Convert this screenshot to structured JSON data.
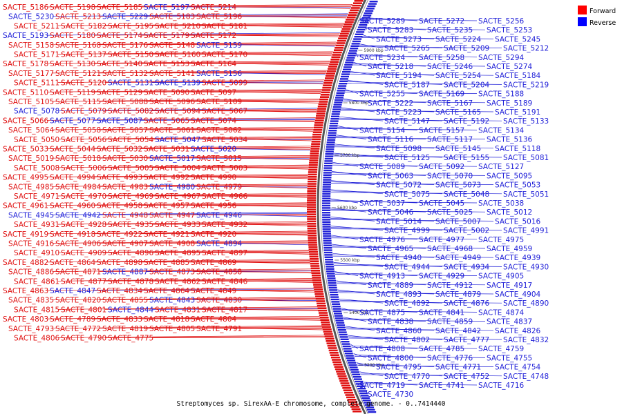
{
  "caption": "Streptomyces sp. SirexAA-E chromosome, complete genome. - 0..7414440",
  "legend": [
    {
      "label": "Forward",
      "color": "#ff0000"
    },
    {
      "label": "Reverse",
      "color": "#0000ff"
    }
  ],
  "colors": {
    "forward": "#e01010",
    "reverse": "#2020d8",
    "backbone": "#555555"
  },
  "ticks": [
    "5900 kbp",
    "5800 kbp",
    "5700 kbp",
    "5600 kbp",
    "5500 kbp",
    "5400 kbp",
    "5300 kbp"
  ],
  "left_labels": [
    [
      "SACTE_5186",
      "f"
    ],
    [
      "SACTE_5198",
      "f"
    ],
    [
      "SACTE_5185",
      "f"
    ],
    [
      "SACTE_5197",
      "r"
    ],
    [
      "SACTE_5214",
      "f"
    ],
    [
      "SACTE_5230",
      "r"
    ],
    [
      "SACTE_5213",
      "f"
    ],
    [
      "SACTE_5229",
      "r"
    ],
    [
      "SACTE_5183",
      "f"
    ],
    [
      "SACTE_5196",
      "f"
    ],
    [
      "SACTE_5211",
      "f"
    ],
    [
      "SACTE_5182",
      "f"
    ],
    [
      "SACTE_5195",
      "f"
    ],
    [
      "SACTE_5210",
      "f"
    ],
    [
      "SACTE_5181",
      "f"
    ],
    [
      "SACTE_5193",
      "r"
    ],
    [
      "SACTE_5180",
      "f"
    ],
    [
      "SACTE_5174",
      "f"
    ],
    [
      "SACTE_5179",
      "f"
    ],
    [
      "SACTE_5172",
      "f"
    ],
    [
      "SACTE_5158",
      "f"
    ],
    [
      "SACTE_5168",
      "f"
    ],
    [
      "SACTE_5176",
      "f"
    ],
    [
      "SACTE_5148",
      "f"
    ],
    [
      "SACTE_5159",
      "r"
    ],
    [
      "SACTE_5171",
      "f"
    ],
    [
      "SACTE_5137",
      "f"
    ],
    [
      "SACTE_5150",
      "f"
    ],
    [
      "SACTE_5160",
      "f"
    ],
    [
      "SACTE_5170",
      "f"
    ],
    [
      "SACTE_5178",
      "f"
    ],
    [
      "SACTE_5130",
      "f"
    ],
    [
      "SACTE_5140",
      "f"
    ],
    [
      "SACTE_5153",
      "f"
    ],
    [
      "SACTE_5164",
      "f"
    ],
    [
      "SACTE_5177",
      "f"
    ],
    [
      "SACTE_5121",
      "f"
    ],
    [
      "SACTE_5132",
      "f"
    ],
    [
      "SACTE_5141",
      "f"
    ],
    [
      "SACTE_5156",
      "r"
    ],
    [
      "SACTE_5111",
      "f"
    ],
    [
      "SACTE_5120",
      "f"
    ],
    [
      "SACTE_5131",
      "r"
    ],
    [
      "SACTE_5139",
      "r"
    ],
    [
      "SACTE_5099",
      "f"
    ],
    [
      "SACTE_5110",
      "f"
    ],
    [
      "SACTE_5119",
      "f"
    ],
    [
      "SACTE_5129",
      "f"
    ],
    [
      "SACTE_5090",
      "f"
    ],
    [
      "SACTE_5097",
      "f"
    ],
    [
      "SACTE_5105",
      "f"
    ],
    [
      "SACTE_5115",
      "f"
    ],
    [
      "SACTE_5088",
      "f"
    ],
    [
      "SACTE_5096",
      "f"
    ],
    [
      "SACTE_5109",
      "f"
    ],
    [
      "SACTE_5078",
      "r"
    ],
    [
      "SACTE_5079",
      "f"
    ],
    [
      "SACTE_5082",
      "f"
    ],
    [
      "SACTE_5094",
      "f"
    ],
    [
      "SACTE_5067",
      "f"
    ],
    [
      "SACTE_5066",
      "f"
    ],
    [
      "SACTE_5077",
      "r"
    ],
    [
      "SACTE_5087",
      "r"
    ],
    [
      "SACTE_5065",
      "f"
    ],
    [
      "SACTE_5074",
      "f"
    ],
    [
      "SACTE_5064",
      "f"
    ],
    [
      "SACTE_5058",
      "f"
    ],
    [
      "SACTE_5057",
      "f"
    ],
    [
      "SACTE_5061",
      "f"
    ],
    [
      "SACTE_5062",
      "f"
    ],
    [
      "SACTE_5050",
      "f"
    ],
    [
      "SACTE_5056",
      "f"
    ],
    [
      "SACTE_5054",
      "f"
    ],
    [
      "SACTE_5047",
      "r"
    ],
    [
      "SACTE_5034",
      "f"
    ],
    [
      "SACTE_5033",
      "f"
    ],
    [
      "SACTE_5044",
      "f"
    ],
    [
      "SACTE_5032",
      "f"
    ],
    [
      "SACTE_5031",
      "f"
    ],
    [
      "SACTE_5020",
      "r"
    ],
    [
      "SACTE_5019",
      "f"
    ],
    [
      "SACTE_5018",
      "f"
    ],
    [
      "SACTE_5030",
      "f"
    ],
    [
      "SACTE_5017",
      "r"
    ],
    [
      "SACTE_5015",
      "f"
    ],
    [
      "SACTE_5008",
      "f"
    ],
    [
      "SACTE_5006",
      "f"
    ],
    [
      "SACTE_5005",
      "f"
    ],
    [
      "SACTE_5004",
      "f"
    ],
    [
      "SACTE_5003",
      "f"
    ],
    [
      "SACTE_4995",
      "f"
    ],
    [
      "SACTE_4994",
      "f"
    ],
    [
      "SACTE_4993",
      "f"
    ],
    [
      "SACTE_4992",
      "f"
    ],
    [
      "SACTE_4990",
      "f"
    ],
    [
      "SACTE_4985",
      "f"
    ],
    [
      "SACTE_4984",
      "f"
    ],
    [
      "SACTE_4983",
      "f"
    ],
    [
      "SACTE_4980",
      "r"
    ],
    [
      "SACTE_4979",
      "f"
    ],
    [
      "SACTE_4971",
      "f"
    ],
    [
      "SACTE_4970",
      "f"
    ],
    [
      "SACTE_4969",
      "f"
    ],
    [
      "SACTE_4967",
      "f"
    ],
    [
      "SACTE_4966",
      "f"
    ],
    [
      "SACTE_4961",
      "f"
    ],
    [
      "SACTE_4960",
      "f"
    ],
    [
      "SACTE_4958",
      "f"
    ],
    [
      "SACTE_4957",
      "f"
    ],
    [
      "SACTE_4956",
      "f"
    ],
    [
      "SACTE_4945",
      "r"
    ],
    [
      "SACTE_4942",
      "r"
    ],
    [
      "SACTE_4948",
      "f"
    ],
    [
      "SACTE_4947",
      "f"
    ],
    [
      "SACTE_4946",
      "r"
    ],
    [
      "SACTE_4931",
      "f"
    ],
    [
      "SACTE_4928",
      "f"
    ],
    [
      "SACTE_4935",
      "f"
    ],
    [
      "SACTE_4933",
      "f"
    ],
    [
      "SACTE_4932",
      "f"
    ],
    [
      "SACTE_4919",
      "f"
    ],
    [
      "SACTE_4918",
      "f"
    ],
    [
      "SACTE_4922",
      "f"
    ],
    [
      "SACTE_4921",
      "f"
    ],
    [
      "SACTE_4920",
      "f"
    ],
    [
      "SACTE_4916",
      "f"
    ],
    [
      "SACTE_4906",
      "f"
    ],
    [
      "SACTE_4907",
      "f"
    ],
    [
      "SACTE_4908",
      "f"
    ],
    [
      "SACTE_4894",
      "r"
    ],
    [
      "SACTE_4910",
      "f"
    ],
    [
      "SACTE_4909",
      "f"
    ],
    [
      "SACTE_4896",
      "f"
    ],
    [
      "SACTE_4895",
      "f"
    ],
    [
      "SACTE_4897",
      "f"
    ],
    [
      "SACTE_4882",
      "f"
    ],
    [
      "SACTE_4864",
      "f"
    ],
    [
      "SACTE_4898",
      "f"
    ],
    [
      "SACTE_4885",
      "f"
    ],
    [
      "SACTE_4869",
      "f"
    ],
    [
      "SACTE_4886",
      "f"
    ],
    [
      "SACTE_4871",
      "f"
    ],
    [
      "SACTE_4887",
      "r"
    ],
    [
      "SACTE_4873",
      "f"
    ],
    [
      "SACTE_4858",
      "f"
    ],
    [
      "SACTE_4861",
      "f"
    ],
    [
      "SACTE_4877",
      "f"
    ],
    [
      "SACTE_4878",
      "f"
    ],
    [
      "SACTE_4862",
      "f"
    ],
    [
      "SACTE_4846",
      "f"
    ],
    [
      "SACTE_4863",
      "f"
    ],
    [
      "SACTE_4847",
      "r"
    ],
    [
      "SACTE_4834",
      "f"
    ],
    [
      "SACTE_4864",
      "f"
    ],
    [
      "SACTE_4849",
      "f"
    ],
    [
      "SACTE_4835",
      "f"
    ],
    [
      "SACTE_4820",
      "f"
    ],
    [
      "SACTE_4855",
      "f"
    ],
    [
      "SACTE_4843",
      "r"
    ],
    [
      "SACTE_4830",
      "f"
    ],
    [
      "SACTE_4815",
      "f"
    ],
    [
      "SACTE_4801",
      "f"
    ],
    [
      "SACTE_4844",
      "r"
    ],
    [
      "SACTE_4831",
      "f"
    ],
    [
      "SACTE_4817",
      "f"
    ],
    [
      "SACTE_4803",
      "f"
    ],
    [
      "SACTE_4789",
      "f"
    ],
    [
      "SACTE_4833",
      "f"
    ],
    [
      "SACTE_4818",
      "f"
    ],
    [
      "SACTE_4804",
      "f"
    ],
    [
      "SACTE_4793",
      "f"
    ],
    [
      "SACTE_4772",
      "f"
    ],
    [
      "SACTE_4819",
      "f"
    ],
    [
      "SACTE_4805",
      "f"
    ],
    [
      "SACTE_4791",
      "f"
    ],
    [
      "SACTE_4806",
      "f"
    ],
    [
      "SACTE_4790",
      "f"
    ],
    [
      "SACTE_4775",
      "f"
    ]
  ],
  "right_labels": [
    [
      "SACTE_5289",
      "r"
    ],
    [
      "SACTE_5272",
      "r"
    ],
    [
      "SACTE_5256",
      "r"
    ],
    [
      "SACTE_5283",
      "r"
    ],
    [
      "SACTE_5235",
      "r"
    ],
    [
      "SACTE_5253",
      "r"
    ],
    [
      "SACTE_5273",
      "r"
    ],
    [
      "SACTE_5224",
      "r"
    ],
    [
      "SACTE_5245",
      "r"
    ],
    [
      "SACTE_5265",
      "r"
    ],
    [
      "SACTE_5209",
      "r"
    ],
    [
      "SACTE_5212",
      "r"
    ],
    [
      "SACTE_5234",
      "r"
    ],
    [
      "SACTE_5258",
      "r"
    ],
    [
      "SACTE_5294",
      "r"
    ],
    [
      "SACTE_5218",
      "r"
    ],
    [
      "SACTE_5246",
      "r"
    ],
    [
      "SACTE_5274",
      "r"
    ],
    [
      "SACTE_5194",
      "r"
    ],
    [
      "SACTE_5254",
      "r"
    ],
    [
      "SACTE_5184",
      "r"
    ],
    [
      "SACTE_5187",
      "r"
    ],
    [
      "SACTE_5204",
      "r"
    ],
    [
      "SACTE_5219",
      "r"
    ],
    [
      "SACTE_5255",
      "r"
    ],
    [
      "SACTE_5169",
      "r"
    ],
    [
      "SACTE_5188",
      "r"
    ],
    [
      "SACTE_5222",
      "r"
    ],
    [
      "SACTE_5167",
      "r"
    ],
    [
      "SACTE_5189",
      "r"
    ],
    [
      "SACTE_5223",
      "r"
    ],
    [
      "SACTE_5165",
      "r"
    ],
    [
      "SACTE_5191",
      "r"
    ],
    [
      "SACTE_5147",
      "r"
    ],
    [
      "SACTE_5192",
      "r"
    ],
    [
      "SACTE_5133",
      "r"
    ],
    [
      "SACTE_5154",
      "r"
    ],
    [
      "SACTE_5157",
      "r"
    ],
    [
      "SACTE_5134",
      "r"
    ],
    [
      "SACTE_5116",
      "r"
    ],
    [
      "SACTE_5117",
      "r"
    ],
    [
      "SACTE_5136",
      "r"
    ],
    [
      "SACTE_5098",
      "r"
    ],
    [
      "SACTE_5145",
      "r"
    ],
    [
      "SACTE_5118",
      "r"
    ],
    [
      "SACTE_5125",
      "r"
    ],
    [
      "SACTE_5155",
      "r"
    ],
    [
      "SACTE_5081",
      "r"
    ],
    [
      "SACTE_5089",
      "r"
    ],
    [
      "SACTE_5092",
      "r"
    ],
    [
      "SACTE_5127",
      "r"
    ],
    [
      "SACTE_5063",
      "r"
    ],
    [
      "SACTE_5070",
      "r"
    ],
    [
      "SACTE_5095",
      "r"
    ],
    [
      "SACTE_5072",
      "r"
    ],
    [
      "SACTE_5073",
      "r"
    ],
    [
      "SACTE_5053",
      "r"
    ],
    [
      "SACTE_5075",
      "r"
    ],
    [
      "SACTE_5048",
      "r"
    ],
    [
      "SACTE_5051",
      "r"
    ],
    [
      "SACTE_5037",
      "r"
    ],
    [
      "SACTE_5045",
      "r"
    ],
    [
      "SACTE_5038",
      "r"
    ],
    [
      "SACTE_5046",
      "r"
    ],
    [
      "SACTE_5025",
      "r"
    ],
    [
      "SACTE_5012",
      "r"
    ],
    [
      "SACTE_5014",
      "r"
    ],
    [
      "SACTE_5007",
      "r"
    ],
    [
      "SACTE_5016",
      "r"
    ],
    [
      "SACTE_4999",
      "r"
    ],
    [
      "SACTE_5002",
      "r"
    ],
    [
      "SACTE_4991",
      "r"
    ],
    [
      "SACTE_4976",
      "r"
    ],
    [
      "SACTE_4977",
      "r"
    ],
    [
      "SACTE_4975",
      "r"
    ],
    [
      "SACTE_4965",
      "r"
    ],
    [
      "SACTE_4968",
      "r"
    ],
    [
      "SACTE_4959",
      "r"
    ],
    [
      "SACTE_4940",
      "r"
    ],
    [
      "SACTE_4949",
      "r"
    ],
    [
      "SACTE_4939",
      "r"
    ],
    [
      "SACTE_4944",
      "r"
    ],
    [
      "SACTE_4934",
      "r"
    ],
    [
      "SACTE_4930",
      "r"
    ],
    [
      "SACTE_4913",
      "r"
    ],
    [
      "SACTE_4929",
      "r"
    ],
    [
      "SACTE_4905",
      "r"
    ],
    [
      "SACTE_4889",
      "r"
    ],
    [
      "SACTE_4912",
      "r"
    ],
    [
      "SACTE_4917",
      "r"
    ],
    [
      "SACTE_4893",
      "r"
    ],
    [
      "SACTE_4879",
      "r"
    ],
    [
      "SACTE_4904",
      "r"
    ],
    [
      "SACTE_4892",
      "r"
    ],
    [
      "SACTE_4876",
      "r"
    ],
    [
      "SACTE_4890",
      "r"
    ],
    [
      "SACTE_4875",
      "r"
    ],
    [
      "SACTE_4841",
      "r"
    ],
    [
      "SACTE_4874",
      "r"
    ],
    [
      "SACTE_4838",
      "r"
    ],
    [
      "SACTE_4859",
      "r"
    ],
    [
      "SACTE_4837",
      "r"
    ],
    [
      "SACTE_4860",
      "r"
    ],
    [
      "SACTE_4842",
      "r"
    ],
    [
      "SACTE_4826",
      "r"
    ],
    [
      "SACTE_4802",
      "r"
    ],
    [
      "SACTE_4777",
      "r"
    ],
    [
      "SACTE_4832",
      "r"
    ],
    [
      "SACTE_4808",
      "r"
    ],
    [
      "SACTE_4785",
      "r"
    ],
    [
      "SACTE_4759",
      "r"
    ],
    [
      "SACTE_4800",
      "r"
    ],
    [
      "SACTE_4776",
      "r"
    ],
    [
      "SACTE_4755",
      "r"
    ],
    [
      "SACTE_4795",
      "r"
    ],
    [
      "SACTE_4771",
      "r"
    ],
    [
      "SACTE_4754",
      "r"
    ],
    [
      "SACTE_4770",
      "r"
    ],
    [
      "SACTE_4752",
      "r"
    ],
    [
      "SACTE_4748",
      "r"
    ],
    [
      "SACTE_4719",
      "r"
    ],
    [
      "SACTE_4741",
      "r"
    ],
    [
      "SACTE_4716",
      "r"
    ],
    [
      "SACTE_4730",
      "r"
    ]
  ]
}
